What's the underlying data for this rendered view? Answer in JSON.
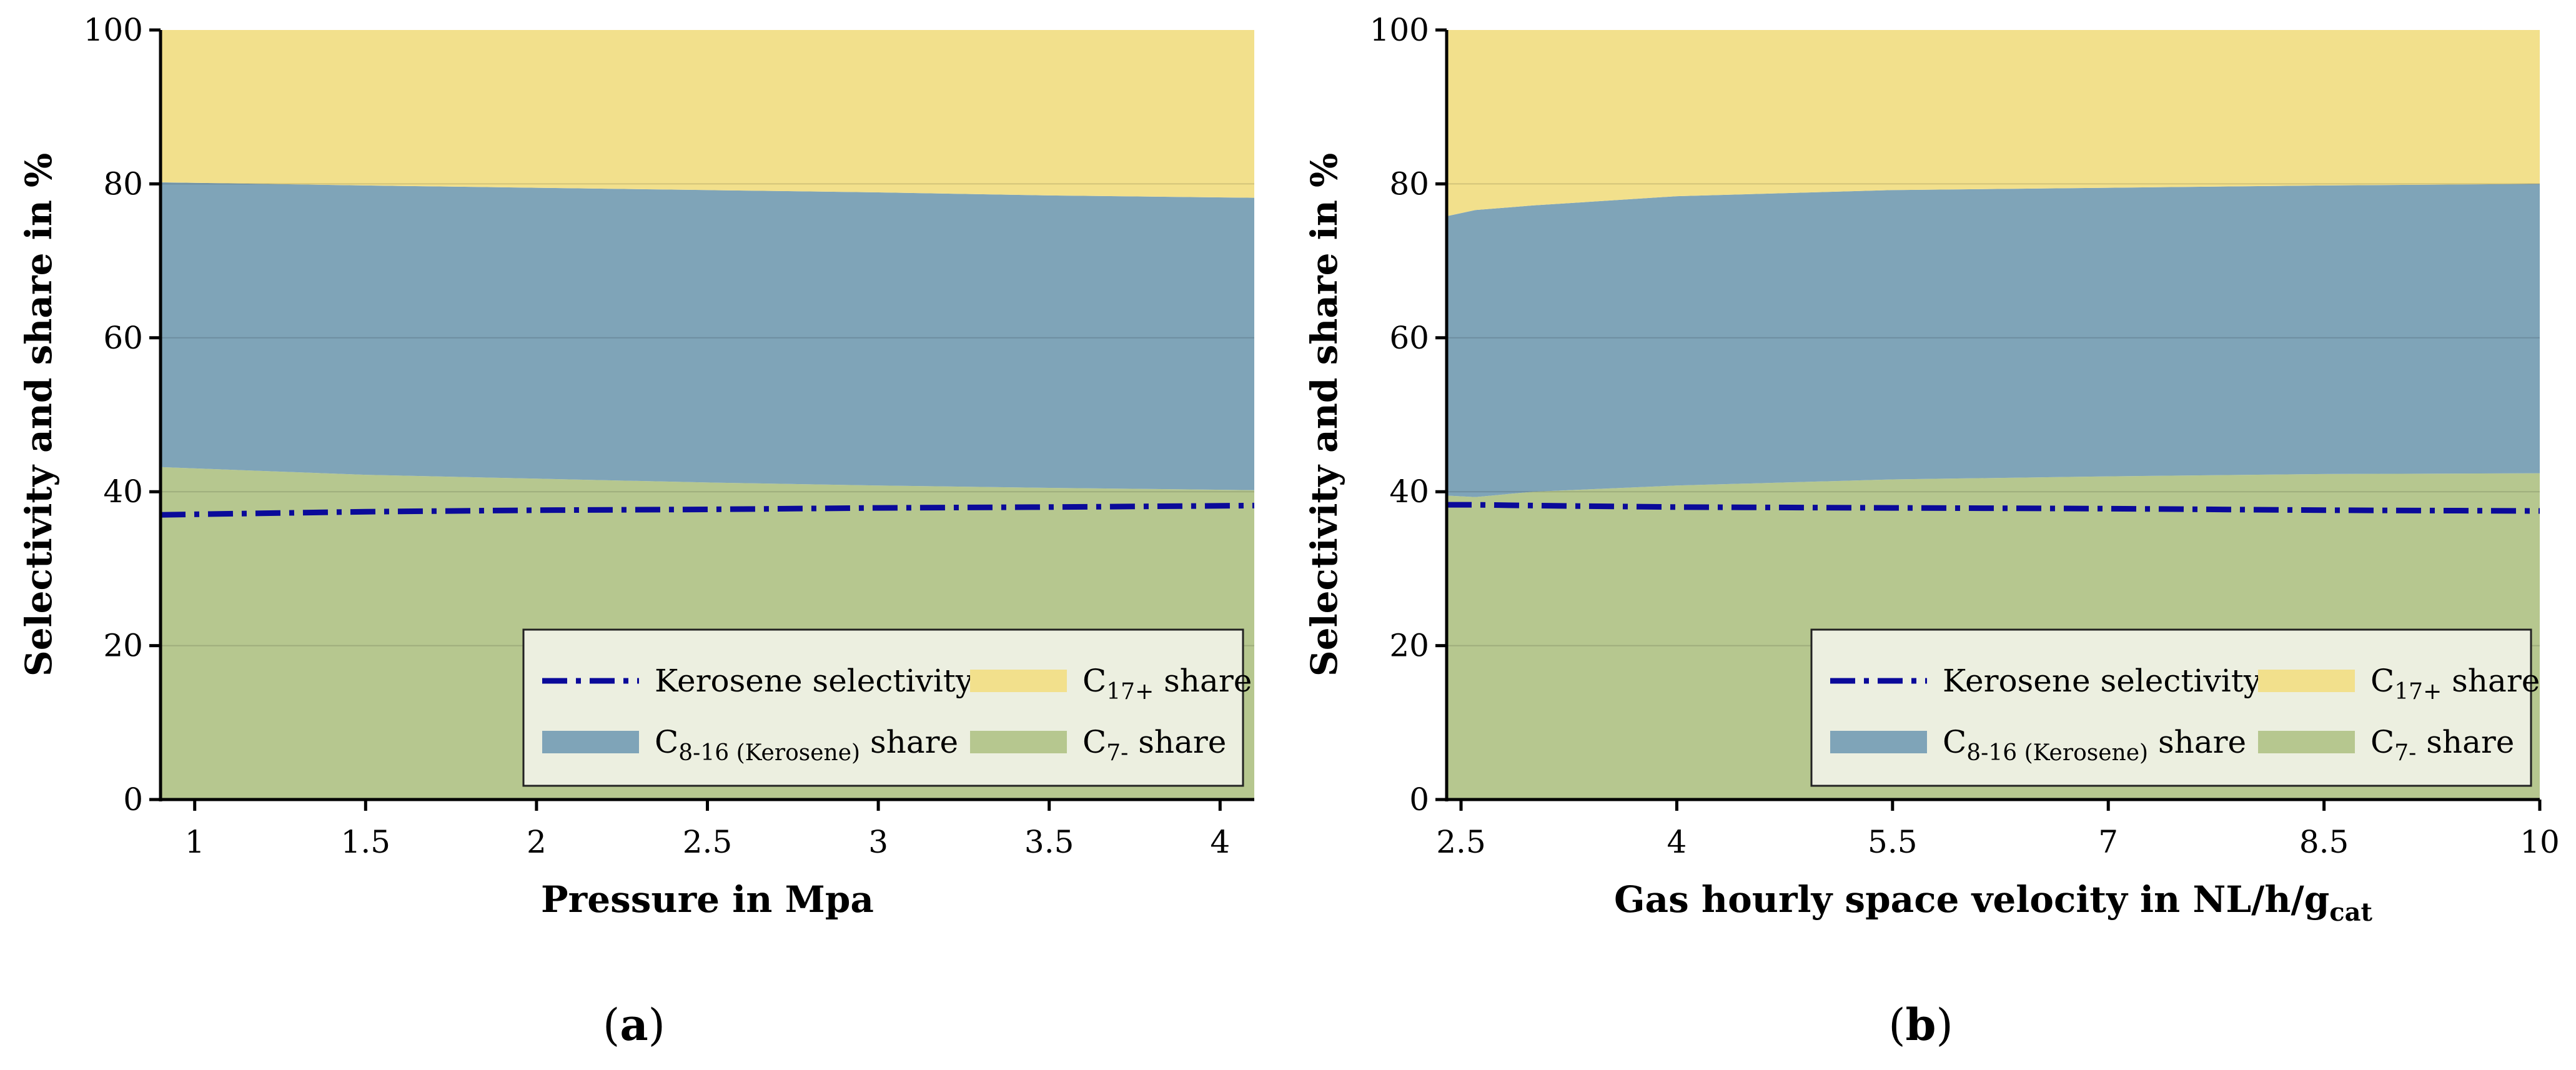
{
  "colors": {
    "c17_share": "#f2e08c",
    "kerosene_share": "#7fa4b8",
    "c7_share": "#b6c78f",
    "kerosene_selectivity": "#0a0a9a",
    "legend_bg": "#ecefe0",
    "axis": "#000000"
  },
  "chart_data": [
    {
      "id": "a",
      "type": "area",
      "panel_label": "(a)",
      "title": "",
      "xlabel": "Pressure in Mpa",
      "xlabel_main": "Pressure in Mpa",
      "xlabel_sub": "",
      "ylabel": "Selectivity and share in %",
      "xlim": [
        0.9,
        4.1
      ],
      "ylim": [
        0,
        100
      ],
      "xticks": [
        1,
        1.5,
        2,
        2.5,
        3,
        3.5,
        4
      ],
      "xtick_labels": [
        "1",
        "1.5",
        "2",
        "2.5",
        "3",
        "3.5",
        "4"
      ],
      "yticks": [
        0,
        20,
        40,
        60,
        80,
        100
      ],
      "ytick_labels": [
        "0",
        "20",
        "40",
        "60",
        "80",
        "100"
      ],
      "grid": "horizontal",
      "legend_position": "bottom-right",
      "x": [
        0.9,
        1.5,
        2.0,
        2.5,
        3.0,
        3.5,
        4.1
      ],
      "series": [
        {
          "name": "C7- share",
          "kind": "stacked-area",
          "values": [
            43.2,
            42.2,
            41.7,
            41.2,
            40.8,
            40.5,
            40.2
          ]
        },
        {
          "name": "C8-16 (Kerosene) share",
          "kind": "stacked-area",
          "values": [
            37.0,
            37.6,
            37.8,
            38.0,
            38.1,
            38.0,
            38.0
          ]
        },
        {
          "name": "C17+ share",
          "kind": "stacked-area",
          "values": [
            19.8,
            20.2,
            20.5,
            20.8,
            21.1,
            21.5,
            21.8
          ]
        },
        {
          "name": "Kerosene selectivity",
          "kind": "line",
          "values": [
            37.0,
            37.4,
            37.6,
            37.7,
            37.9,
            38.0,
            38.2
          ]
        }
      ],
      "legend": [
        {
          "key": "kerosene_selectivity",
          "type": "line",
          "main": "Kerosene selectivity",
          "sub": "",
          "tail": ""
        },
        {
          "key": "c17_share",
          "type": "patch",
          "main": "C",
          "sub": "17+",
          "tail": " share"
        },
        {
          "key": "kerosene_share",
          "type": "patch",
          "main": "C",
          "sub": "8-16 (Kerosene)",
          "tail": " share"
        },
        {
          "key": "c7_share",
          "type": "patch",
          "main": "C",
          "sub": "7-",
          "tail": " share"
        }
      ]
    },
    {
      "id": "b",
      "type": "area",
      "panel_label": "(b)",
      "title": "",
      "xlabel": "Gas hourly space velocity in NL/h/gcat",
      "xlabel_main": "Gas hourly space velocity in NL/h/g",
      "xlabel_sub": "cat",
      "ylabel": "Selectivity and share in %",
      "xlim": [
        2.4,
        10.0
      ],
      "ylim": [
        0,
        100
      ],
      "xticks": [
        2.5,
        4,
        5.5,
        7,
        8.5,
        10
      ],
      "xtick_labels": [
        "2.5",
        "4",
        "5.5",
        "7",
        "8.5",
        "10"
      ],
      "yticks": [
        0,
        20,
        40,
        60,
        80,
        100
      ],
      "ytick_labels": [
        "0",
        "20",
        "40",
        "60",
        "80",
        "100"
      ],
      "grid": "horizontal",
      "legend_position": "bottom-right",
      "x": [
        2.4,
        2.6,
        3.0,
        4.0,
        5.5,
        7.0,
        8.5,
        10.0
      ],
      "series": [
        {
          "name": "C7- share",
          "kind": "stacked-area",
          "values": [
            39.5,
            39.3,
            40.0,
            40.8,
            41.6,
            42.0,
            42.3,
            42.4
          ]
        },
        {
          "name": "C8-16 (Kerosene) share",
          "kind": "stacked-area",
          "values": [
            36.3,
            37.3,
            37.2,
            37.6,
            37.6,
            37.5,
            37.5,
            37.6
          ]
        },
        {
          "name": "C17+ share",
          "kind": "stacked-area",
          "values": [
            24.2,
            23.4,
            22.8,
            21.6,
            20.8,
            20.5,
            20.2,
            20.0
          ]
        },
        {
          "name": "Kerosene selectivity",
          "kind": "line",
          "values": [
            38.3,
            38.3,
            38.2,
            38.0,
            37.9,
            37.8,
            37.6,
            37.5
          ]
        }
      ],
      "legend": [
        {
          "key": "kerosene_selectivity",
          "type": "line",
          "main": "Kerosene selectivity",
          "sub": "",
          "tail": ""
        },
        {
          "key": "c17_share",
          "type": "patch",
          "main": "C",
          "sub": "17+",
          "tail": " share"
        },
        {
          "key": "kerosene_share",
          "type": "patch",
          "main": "C",
          "sub": "8-16 (Kerosene)",
          "tail": " share"
        },
        {
          "key": "c7_share",
          "type": "patch",
          "main": "C",
          "sub": "7-",
          "tail": " share"
        }
      ]
    }
  ]
}
